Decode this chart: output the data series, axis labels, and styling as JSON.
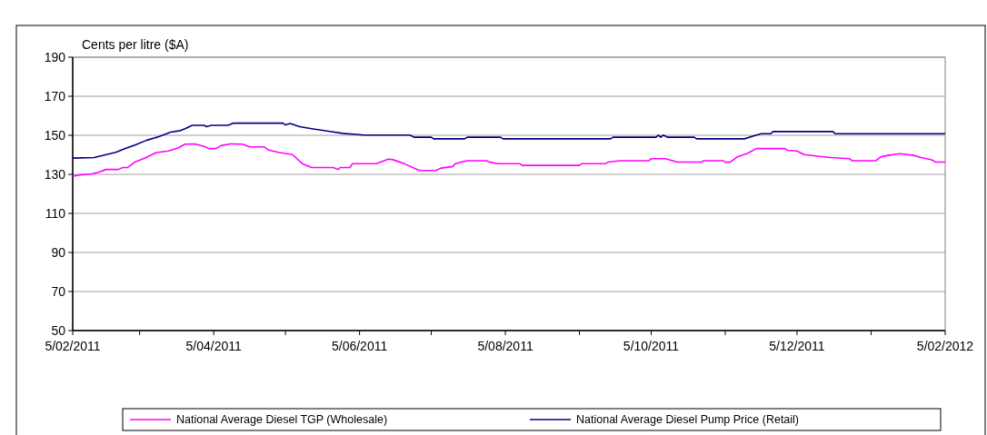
{
  "chart_data": {
    "type": "line",
    "ylabel": "Cents per litre ($A)",
    "ylim": [
      50,
      190
    ],
    "yticks": [
      50,
      70,
      90,
      110,
      130,
      150,
      170,
      190
    ],
    "xlim": [
      "2011-02-05",
      "2012-02-05"
    ],
    "xticks": [
      {
        "value": "2011-02-05",
        "label": "5/02/2011"
      },
      {
        "value": "2011-03-05",
        "label": null
      },
      {
        "value": "2011-04-05",
        "label": "5/04/2011"
      },
      {
        "value": "2011-05-05",
        "label": null
      },
      {
        "value": "2011-06-05",
        "label": "5/06/2011"
      },
      {
        "value": "2011-07-05",
        "label": null
      },
      {
        "value": "2011-08-05",
        "label": "5/08/2011"
      },
      {
        "value": "2011-09-05",
        "label": null
      },
      {
        "value": "2011-10-05",
        "label": "5/10/2011"
      },
      {
        "value": "2011-11-05",
        "label": null
      },
      {
        "value": "2011-12-05",
        "label": "5/12/2011"
      },
      {
        "value": "2012-01-05",
        "label": null
      },
      {
        "value": "2012-02-05",
        "label": "5/02/2012"
      }
    ],
    "grid": "y",
    "legend": "bottom",
    "marker": "none",
    "line_style": "solid",
    "series": [
      {
        "name": "National Average Diesel TGP (Wholesale)",
        "color": "#ff00ff",
        "x": [
          "2011-02-05",
          "2011-02-08",
          "2011-02-13",
          "2011-02-16",
          "2011-02-19",
          "2011-02-24",
          "2011-02-26",
          "2011-02-28",
          "2011-03-03",
          "2011-03-07",
          "2011-03-12",
          "2011-03-17",
          "2011-03-21",
          "2011-03-24",
          "2011-03-28",
          "2011-04-01",
          "2011-04-03",
          "2011-04-06",
          "2011-04-08",
          "2011-04-12",
          "2011-04-17",
          "2011-04-20",
          "2011-04-26",
          "2011-04-28",
          "2011-05-02",
          "2011-05-08",
          "2011-05-12",
          "2011-05-16",
          "2011-05-25",
          "2011-05-27",
          "2011-05-28",
          "2011-06-01",
          "2011-06-02",
          "2011-06-12",
          "2011-06-17",
          "2011-06-19",
          "2011-06-24",
          "2011-06-30",
          "2011-07-07",
          "2011-07-09",
          "2011-07-14",
          "2011-07-15",
          "2011-07-20",
          "2011-07-28",
          "2011-07-30",
          "2011-08-02",
          "2011-08-11",
          "2011-08-12",
          "2011-09-05",
          "2011-09-06",
          "2011-09-16",
          "2011-09-17",
          "2011-09-22",
          "2011-10-04",
          "2011-10-05",
          "2011-10-11",
          "2011-10-16",
          "2011-10-26",
          "2011-10-27",
          "2011-11-04",
          "2011-11-05",
          "2011-11-07",
          "2011-11-10",
          "2011-11-14",
          "2011-11-18",
          "2011-11-30",
          "2011-12-01",
          "2011-12-05",
          "2011-12-08",
          "2011-12-12",
          "2011-12-19",
          "2011-12-27",
          "2011-12-28",
          "2012-01-07",
          "2012-01-09",
          "2012-01-12",
          "2012-01-17",
          "2012-01-23",
          "2012-01-26",
          "2012-01-30",
          "2012-02-01",
          "2012-02-05"
        ],
        "values": [
          129.1,
          129.7,
          130.2,
          131.2,
          132.5,
          132.5,
          133.5,
          133.5,
          136.3,
          138.3,
          141.2,
          142.0,
          143.5,
          145.5,
          145.6,
          144.3,
          143.2,
          143.2,
          144.7,
          145.6,
          145.5,
          144.1,
          144.1,
          142.4,
          141.3,
          140.1,
          135.5,
          133.5,
          133.5,
          132.5,
          133.5,
          133.5,
          135.5,
          135.5,
          137.8,
          137.5,
          135.3,
          132.0,
          132.0,
          133.2,
          134.0,
          135.5,
          137.0,
          137.0,
          136.1,
          135.5,
          135.5,
          134.6,
          134.6,
          135.5,
          135.5,
          136.3,
          137.0,
          137.0,
          138.0,
          138.0,
          136.3,
          136.3,
          137.0,
          137.0,
          136.2,
          136.2,
          138.9,
          140.6,
          143.2,
          143.2,
          142.3,
          142.0,
          140.1,
          139.5,
          138.6,
          138.0,
          137.0,
          137.0,
          138.9,
          139.7,
          140.6,
          139.7,
          138.6,
          137.6,
          136.3,
          136.3
        ]
      },
      {
        "name": "National Average Diesel Pump Price (Retail)",
        "color": "#000080",
        "x": [
          "2011-02-05",
          "2011-02-14",
          "2011-02-19",
          "2011-02-23",
          "2011-02-27",
          "2011-03-03",
          "2011-03-08",
          "2011-03-13",
          "2011-03-18",
          "2011-03-22",
          "2011-03-24",
          "2011-03-27",
          "2011-04-01",
          "2011-04-02",
          "2011-04-04",
          "2011-04-11",
          "2011-04-13",
          "2011-05-04",
          "2011-05-05",
          "2011-05-07",
          "2011-05-11",
          "2011-05-16",
          "2011-05-23",
          "2011-05-29",
          "2011-06-07",
          "2011-06-26",
          "2011-06-28",
          "2011-07-05",
          "2011-07-06",
          "2011-07-19",
          "2011-07-20",
          "2011-08-03",
          "2011-08-04",
          "2011-09-18",
          "2011-09-19",
          "2011-10-07",
          "2011-10-08",
          "2011-10-09",
          "2011-10-10",
          "2011-10-12",
          "2011-10-23",
          "2011-10-24",
          "2011-11-13",
          "2011-11-18",
          "2011-11-20",
          "2011-11-24",
          "2011-11-25",
          "2011-12-20",
          "2011-12-21",
          "2012-02-05"
        ],
        "values": [
          138.3,
          138.6,
          140.1,
          141.3,
          143.2,
          145.0,
          147.5,
          149.3,
          151.6,
          152.4,
          153.4,
          155.1,
          155.1,
          154.4,
          155.1,
          155.1,
          156.2,
          156.2,
          155.3,
          156.0,
          154.4,
          153.4,
          152.1,
          151.0,
          150.1,
          150.1,
          149.0,
          149.0,
          148.2,
          148.2,
          149.0,
          149.0,
          148.2,
          148.2,
          149.0,
          149.0,
          150.1,
          149.0,
          150.1,
          149.0,
          149.0,
          148.2,
          148.2,
          150.1,
          150.8,
          150.8,
          151.9,
          151.9,
          150.8,
          150.8
        ]
      }
    ]
  }
}
